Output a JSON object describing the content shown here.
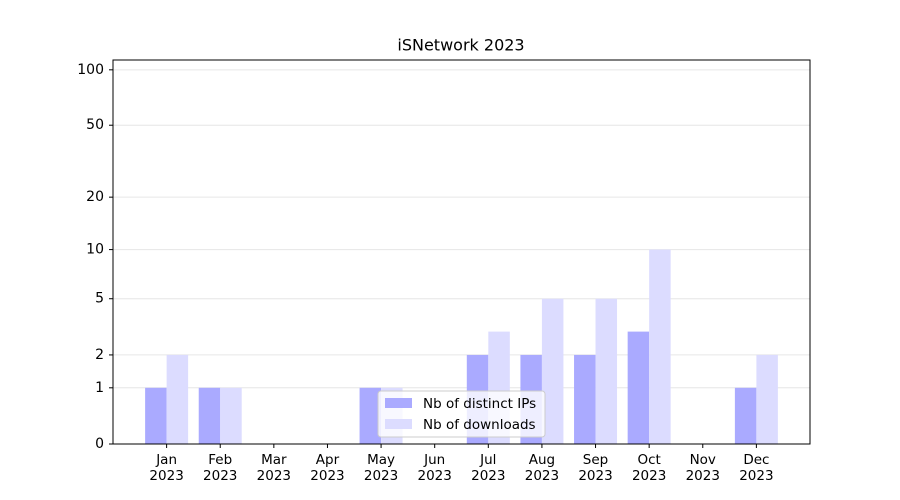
{
  "chart_data": {
    "type": "bar",
    "title": "iSNetwork 2023",
    "categories": [
      "Jan 2023",
      "Feb 2023",
      "Mar 2023",
      "Apr 2023",
      "May 2023",
      "Jun 2023",
      "Jul 2023",
      "Aug 2023",
      "Sep 2023",
      "Oct 2023",
      "Nov 2023",
      "Dec 2023"
    ],
    "series": [
      {
        "name": "Nb of distinct IPs",
        "color": "#aaaaff",
        "values": [
          1,
          1,
          0,
          0,
          1,
          0,
          2,
          2,
          2,
          3,
          0,
          1
        ]
      },
      {
        "name": "Nb of downloads",
        "color": "#dcdcff",
        "values": [
          2,
          1,
          0,
          0,
          1,
          0,
          3,
          5,
          5,
          10,
          0,
          2
        ]
      }
    ],
    "yscale": "log1p",
    "ylim": [
      0,
      113
    ],
    "yticks": [
      0,
      1,
      2,
      5,
      10,
      20,
      50,
      100
    ],
    "grid": true,
    "legend": "lower center"
  }
}
